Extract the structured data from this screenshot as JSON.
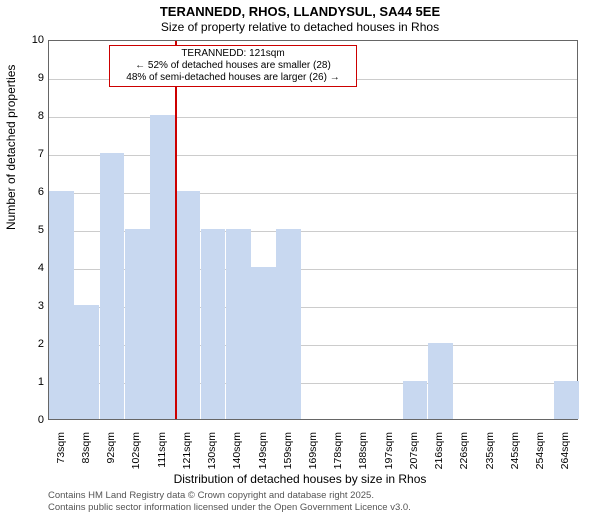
{
  "title": "TERANNEDD, RHOS, LLANDYSUL, SA44 5EE",
  "subtitle": "Size of property relative to detached houses in Rhos",
  "ylabel": "Number of detached properties",
  "xlabel": "Distribution of detached houses by size in Rhos",
  "footer1": "Contains HM Land Registry data © Crown copyright and database right 2025.",
  "footer2": "Contains public sector information licensed under the Open Government Licence v3.0.",
  "chart": {
    "type": "histogram",
    "ylim": [
      0,
      10
    ],
    "ytick_step": 1,
    "background_color": "#ffffff",
    "grid_color": "#cccccc",
    "axis_color": "#666666",
    "bar_color": "#c8d8f0",
    "bar_fill_ratio": 0.98,
    "categories": [
      "73sqm",
      "83sqm",
      "92sqm",
      "102sqm",
      "111sqm",
      "121sqm",
      "130sqm",
      "140sqm",
      "149sqm",
      "159sqm",
      "169sqm",
      "178sqm",
      "188sqm",
      "197sqm",
      "207sqm",
      "216sqm",
      "226sqm",
      "235sqm",
      "245sqm",
      "254sqm",
      "264sqm"
    ],
    "values": [
      6,
      3,
      7,
      5,
      8,
      6,
      5,
      5,
      4,
      5,
      0,
      0,
      0,
      0,
      1,
      2,
      0,
      0,
      0,
      0,
      1
    ]
  },
  "reference": {
    "position_index": 5,
    "line_color": "#cc0000",
    "line_width": 2,
    "callout": {
      "border_color": "#cc0000",
      "border_width": 1,
      "line1": "TERANNEDD: 121sqm",
      "line2": "← 52% of detached houses are smaller (28)",
      "line3": "48% of semi-detached houses are larger (26) →"
    }
  }
}
